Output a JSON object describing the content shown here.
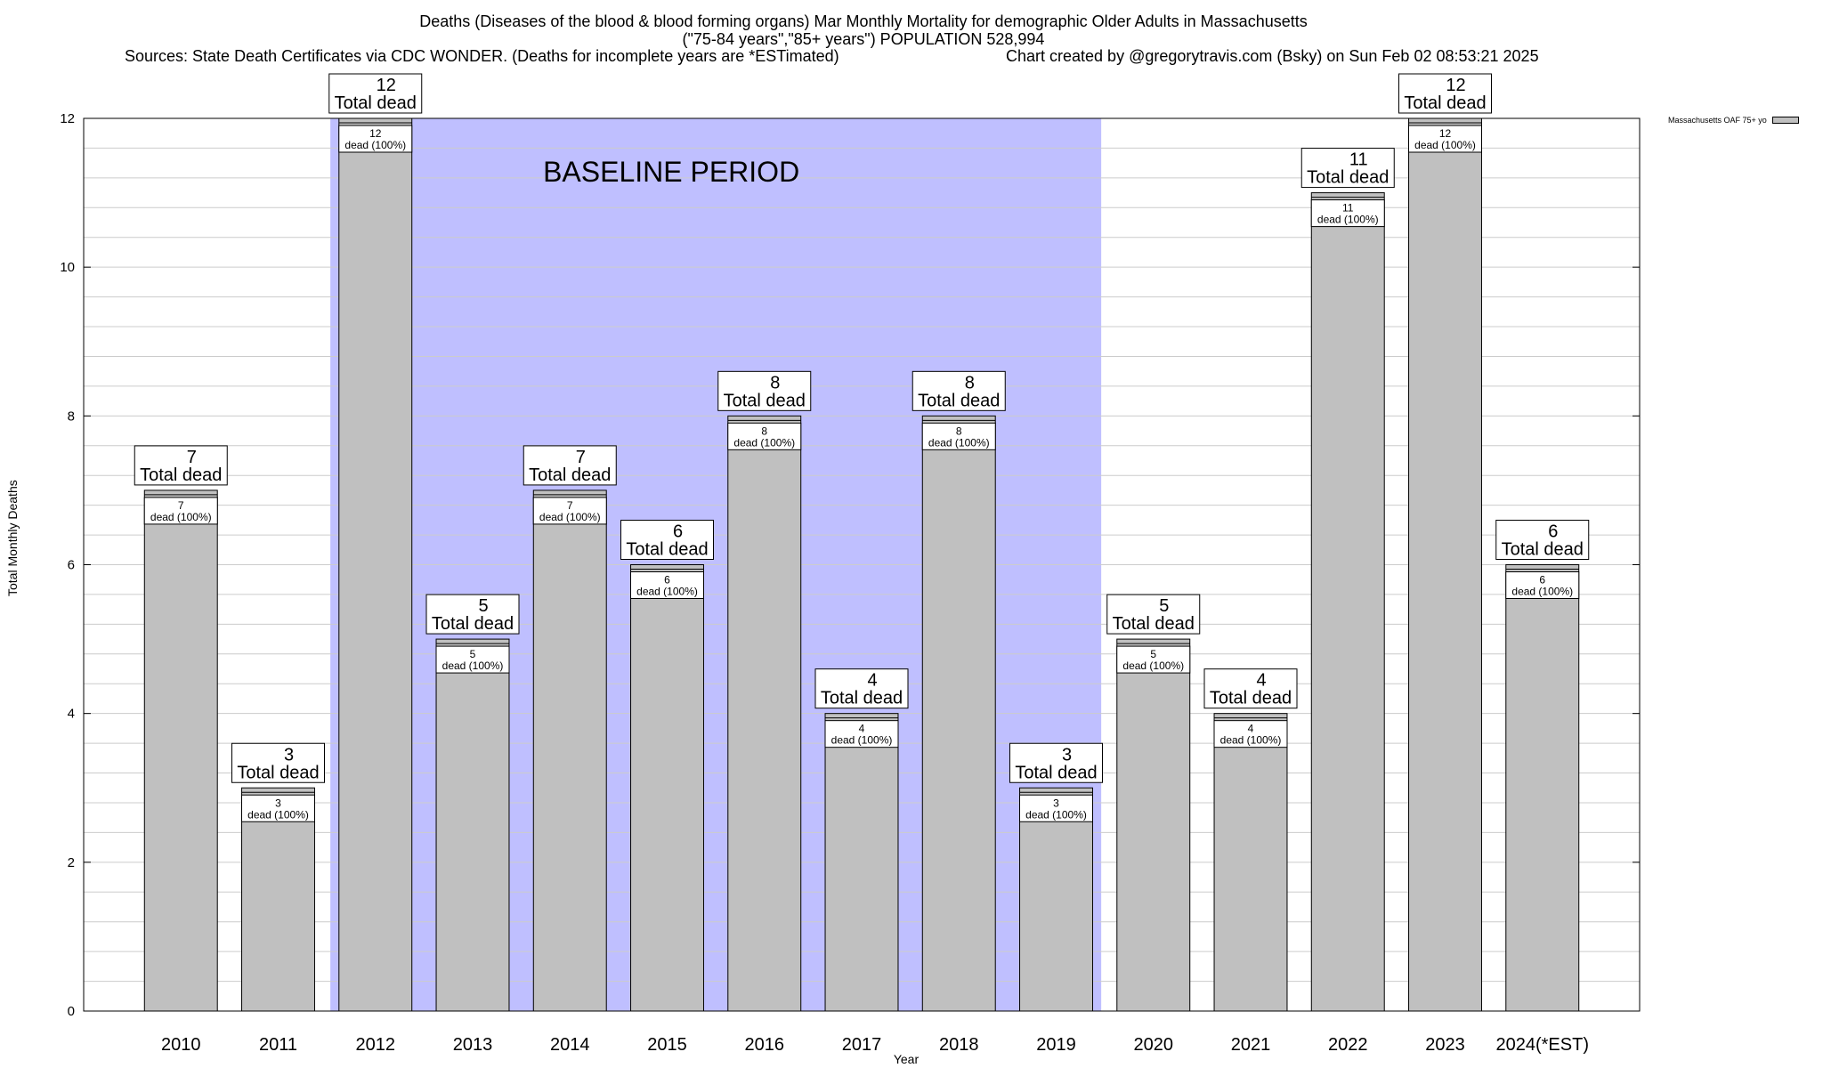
{
  "chart_data": {
    "type": "bar",
    "title": "Deaths (Diseases of the blood & blood forming organs) Mar Monthly Mortality for demographic Older Adults in Massachusetts",
    "subtitle": "(\"75-84 years\",\"85+ years\") POPULATION 528,994",
    "source": "Sources: State Death Certificates via CDC WONDER. (Deaths for incomplete years are *ESTimated)",
    "credit": "Chart created by @gregorytravis.com (Bsky) on Sun Feb 02 08:53:21 2025",
    "xlabel": "Year",
    "ylabel": "Total Monthly Deaths",
    "ylim": [
      0,
      12
    ],
    "yticks": [
      0,
      2,
      4,
      6,
      8,
      10,
      12
    ],
    "categories": [
      "2010",
      "2011",
      "2012",
      "2013",
      "2014",
      "2015",
      "2016",
      "2017",
      "2018",
      "2019",
      "2020",
      "2021",
      "2022",
      "2023",
      "2024(*EST)"
    ],
    "series": [
      {
        "name": "Massachusetts OAF 75+ yo",
        "values": [
          7,
          3,
          12,
          5,
          7,
          6,
          8,
          4,
          8,
          3,
          5,
          4,
          11,
          12,
          6
        ]
      }
    ],
    "total_label_suffix": "Total dead",
    "inner_label_suffix": "dead (100%)",
    "baseline": {
      "label": "BASELINE PERIOD",
      "start": "2012",
      "end": "2019"
    },
    "legend_position": "top-right",
    "grid": true,
    "colors": {
      "bar": "#c0c0c0",
      "baseline": "#bfbfff",
      "grid": "#cccccc"
    }
  }
}
